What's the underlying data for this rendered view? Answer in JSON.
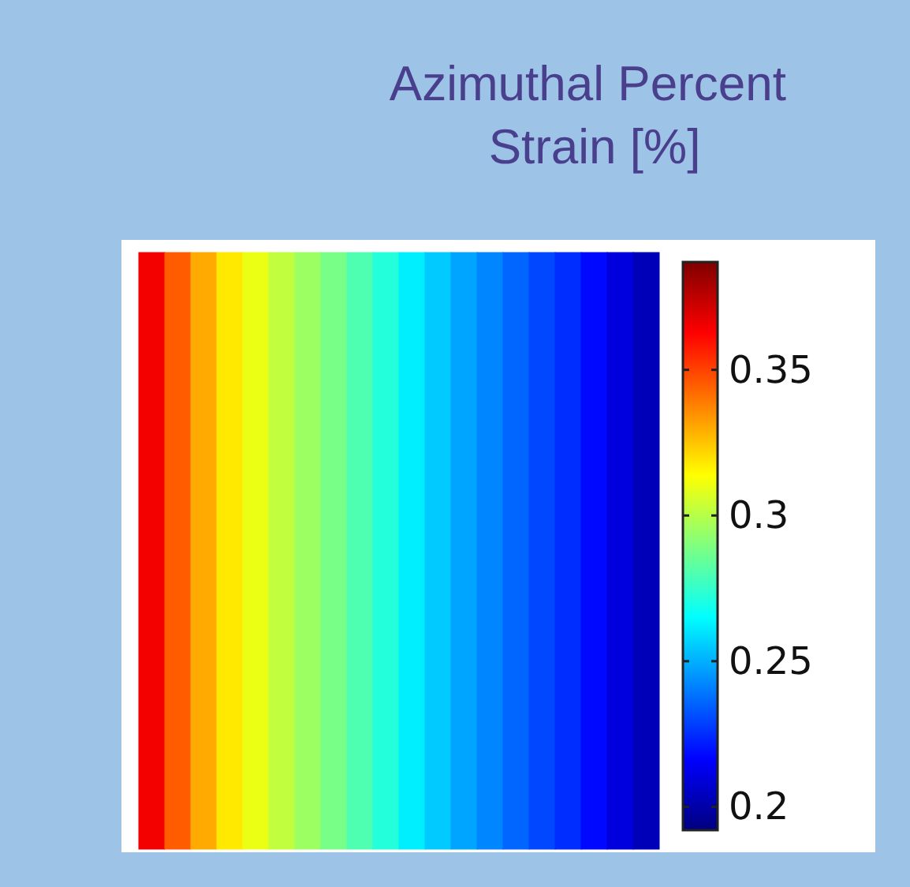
{
  "chart_data": {
    "type": "heatmap",
    "title": "Azimuthal Percent Strain [%]",
    "categories": [
      null,
      null,
      null,
      null,
      null,
      null,
      null,
      null,
      null,
      null,
      null,
      null,
      null,
      null,
      null,
      null,
      null,
      null,
      null,
      null
    ],
    "y_categories": [
      null
    ],
    "cells": [
      [
        0.365,
        0.345,
        0.33,
        0.318,
        0.31,
        0.302,
        0.295,
        0.288,
        0.28,
        0.272,
        0.262,
        0.255,
        0.248,
        0.242,
        0.236,
        0.23,
        0.225,
        0.218,
        0.21,
        0.203
      ]
    ],
    "clim": [
      0.192,
      0.387
    ],
    "cticks": [
      0.2,
      0.25,
      0.3,
      0.35
    ]
  }
}
